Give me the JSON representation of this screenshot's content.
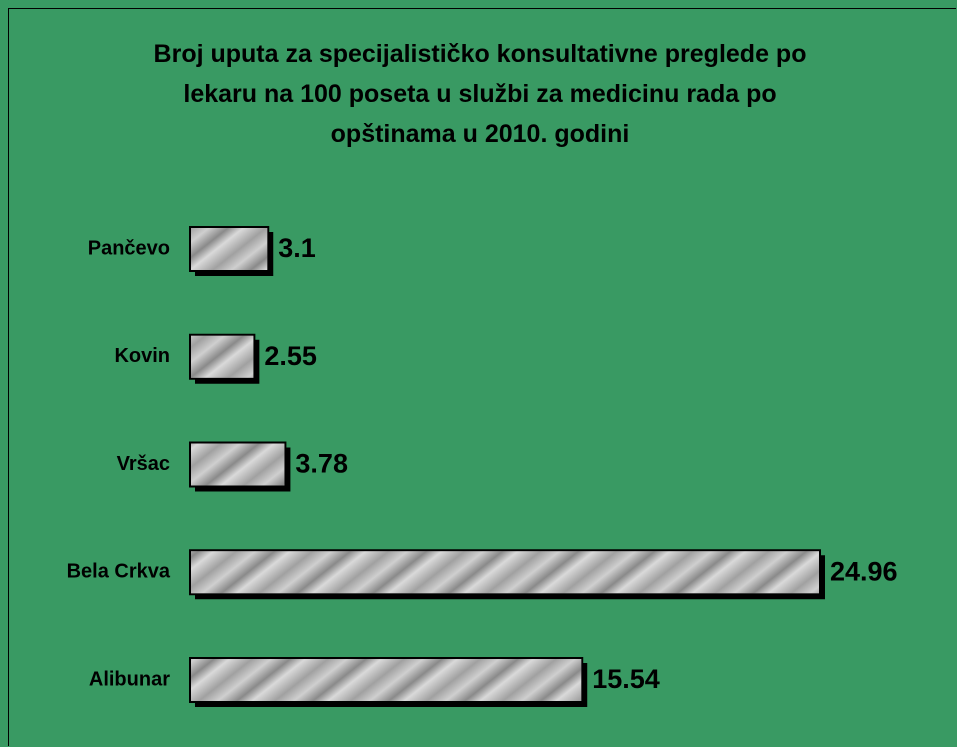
{
  "chart_data": {
    "type": "bar",
    "orientation": "horizontal",
    "title": "Broj uputa za specijalističko konsultativne preglede po lekaru na 100 poseta u službi za medicinu rada po opštinama u 2010. godini",
    "categories": [
      "Pančevo",
      "Kovin",
      "Vršac",
      "Bela Crkva",
      "Alibunar"
    ],
    "values": [
      3.1,
      2.55,
      3.78,
      24.96,
      15.54
    ],
    "color": "#b4b4b4"
  }
}
